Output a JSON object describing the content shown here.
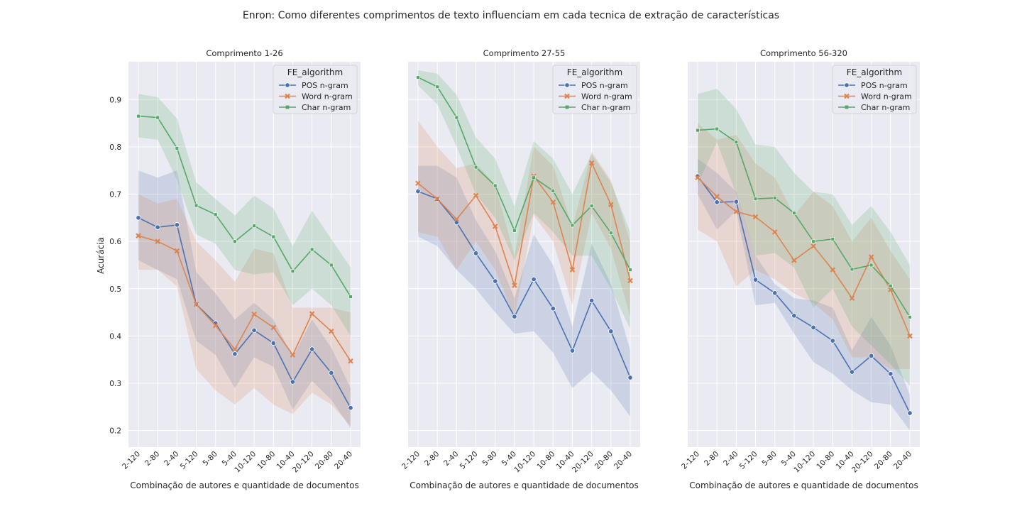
{
  "chart_data": {
    "type": "line",
    "title": "Enron: Como diferentes comprimentos de texto influenciam em cada tecnica de extração de características",
    "ylabel": "Acurácia",
    "xlabel": "Combinação de autores e quantidade de documentos",
    "categories": [
      "2-120",
      "2-80",
      "2-40",
      "5-120",
      "5-80",
      "5-40",
      "10-120",
      "10-80",
      "10-40",
      "20-120",
      "20-80",
      "20-40"
    ],
    "ylim": [
      0.165,
      0.98
    ],
    "yticks": [
      "0.2",
      "0.3",
      "0.4",
      "0.5",
      "0.6",
      "0.7",
      "0.8",
      "0.9"
    ],
    "grid": true,
    "sharey": true,
    "legend": {
      "title": "FE_algorithm",
      "placement": "top-right",
      "entries": [
        "POS n-gram",
        "Word n-gram",
        "Char n-gram"
      ]
    },
    "colors": {
      "POS n-gram": "#4c72b0",
      "Word n-gram": "#dd8452",
      "Char n-gram": "#55a868",
      "background": "#eaeaf2"
    },
    "markers": {
      "POS n-gram": "circle",
      "Word n-gram": "x",
      "Char n-gram": "square"
    },
    "panels": [
      {
        "title": "Comprimento 1-26",
        "series": [
          {
            "name": "POS n-gram",
            "values": [
              0.65,
              0.63,
              0.635,
              0.467,
              0.427,
              0.362,
              0.412,
              0.385,
              0.303,
              0.372,
              0.322,
              0.248
            ],
            "lower": [
              0.56,
              0.54,
              0.52,
              0.39,
              0.36,
              0.29,
              0.355,
              0.335,
              0.245,
              0.305,
              0.265,
              0.205
            ],
            "upper": [
              0.75,
              0.735,
              0.75,
              0.535,
              0.49,
              0.435,
              0.47,
              0.435,
              0.355,
              0.435,
              0.375,
              0.29
            ]
          },
          {
            "name": "Word n-gram",
            "values": [
              0.612,
              0.6,
              0.58,
              0.467,
              0.422,
              0.372,
              0.446,
              0.418,
              0.36,
              0.447,
              0.41,
              0.347
            ],
            "lower": [
              0.54,
              0.54,
              0.505,
              0.33,
              0.285,
              0.255,
              0.29,
              0.255,
              0.235,
              0.28,
              0.255,
              0.21
            ],
            "upper": [
              0.7,
              0.68,
              0.69,
              0.6,
              0.56,
              0.515,
              0.585,
              0.575,
              0.46,
              0.46,
              0.46,
              0.45
            ]
          },
          {
            "name": "Char n-gram",
            "values": [
              0.865,
              0.862,
              0.797,
              0.676,
              0.657,
              0.6,
              0.633,
              0.61,
              0.537,
              0.583,
              0.55,
              0.483
            ],
            "lower": [
              0.82,
              0.815,
              0.73,
              0.615,
              0.595,
              0.54,
              0.53,
              0.535,
              0.465,
              0.5,
              0.465,
              0.4
            ],
            "upper": [
              0.912,
              0.905,
              0.86,
              0.725,
              0.69,
              0.655,
              0.697,
              0.67,
              0.59,
              0.665,
              0.605,
              0.545
            ]
          }
        ]
      },
      {
        "title": "Comprimento 27-55",
        "series": [
          {
            "name": "POS n-gram",
            "values": [
              0.706,
              0.69,
              0.64,
              0.575,
              0.516,
              0.441,
              0.52,
              0.458,
              0.369,
              0.475,
              0.41,
              0.312
            ],
            "lower": [
              0.61,
              0.59,
              0.54,
              0.5,
              0.45,
              0.405,
              0.41,
              0.365,
              0.29,
              0.325,
              0.285,
              0.23
            ],
            "upper": [
              0.76,
              0.76,
              0.735,
              0.645,
              0.58,
              0.48,
              0.615,
              0.55,
              0.42,
              0.595,
              0.51,
              0.37
            ]
          },
          {
            "name": "Word n-gram",
            "values": [
              0.723,
              0.69,
              0.647,
              0.697,
              0.632,
              0.507,
              0.738,
              0.683,
              0.54,
              0.766,
              0.678,
              0.517
            ],
            "lower": [
              0.62,
              0.61,
              0.54,
              0.6,
              0.54,
              0.44,
              0.655,
              0.6,
              0.465,
              0.66,
              0.585,
              0.44
            ],
            "upper": [
              0.855,
              0.8,
              0.755,
              0.765,
              0.72,
              0.57,
              0.8,
              0.76,
              0.63,
              0.79,
              0.73,
              0.6
            ]
          },
          {
            "name": "Char n-gram",
            "values": [
              0.947,
              0.927,
              0.862,
              0.757,
              0.718,
              0.623,
              0.735,
              0.707,
              0.634,
              0.675,
              0.618,
              0.54
            ],
            "lower": [
              0.93,
              0.89,
              0.8,
              0.7,
              0.65,
              0.56,
              0.66,
              0.62,
              0.57,
              0.57,
              0.5,
              0.415
            ],
            "upper": [
              0.962,
              0.955,
              0.91,
              0.82,
              0.775,
              0.675,
              0.812,
              0.775,
              0.7,
              0.785,
              0.725,
              0.62
            ]
          }
        ]
      },
      {
        "title": "Comprimento 56-320",
        "series": [
          {
            "name": "POS n-gram",
            "values": [
              0.738,
              0.683,
              0.684,
              0.519,
              0.491,
              0.443,
              0.418,
              0.39,
              0.324,
              0.358,
              0.32,
              0.237
            ],
            "lower": [
              0.7,
              0.625,
              0.665,
              0.465,
              0.47,
              0.405,
              0.345,
              0.32,
              0.285,
              0.26,
              0.255,
              0.2
            ],
            "upper": [
              0.775,
              0.745,
              0.705,
              0.57,
              0.51,
              0.48,
              0.475,
              0.46,
              0.37,
              0.44,
              0.38,
              0.275
            ]
          },
          {
            "name": "Word n-gram",
            "values": [
              0.735,
              0.695,
              0.663,
              0.652,
              0.62,
              0.56,
              0.59,
              0.54,
              0.48,
              0.567,
              0.498,
              0.4
            ],
            "lower": [
              0.625,
              0.6,
              0.505,
              0.54,
              0.52,
              0.49,
              0.47,
              0.435,
              0.355,
              0.355,
              0.33,
              0.33
            ],
            "upper": [
              0.85,
              0.815,
              0.825,
              0.765,
              0.735,
              0.655,
              0.705,
              0.675,
              0.6,
              0.65,
              0.58,
              0.52
            ]
          },
          {
            "name": "Char n-gram",
            "values": [
              0.835,
              0.838,
              0.81,
              0.69,
              0.692,
              0.66,
              0.6,
              0.605,
              0.541,
              0.55,
              0.506,
              0.44
            ],
            "lower": [
              0.72,
              0.81,
              0.7,
              0.57,
              0.575,
              0.545,
              0.46,
              0.5,
              0.42,
              0.38,
              0.34,
              0.295
            ],
            "upper": [
              0.912,
              0.923,
              0.88,
              0.805,
              0.8,
              0.745,
              0.705,
              0.7,
              0.635,
              0.675,
              0.62,
              0.55
            ]
          }
        ]
      }
    ]
  }
}
